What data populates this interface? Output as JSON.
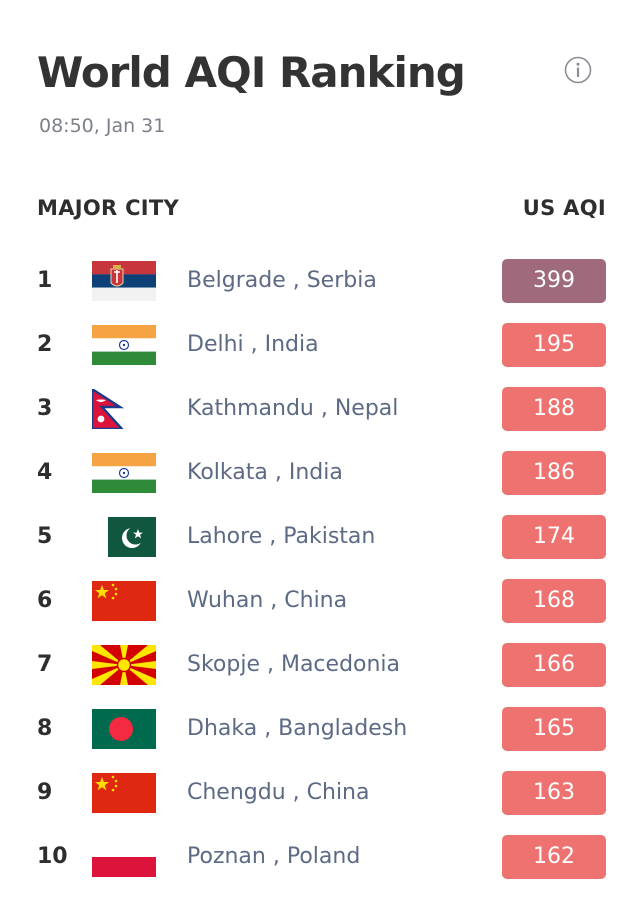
{
  "header": {
    "title": "World AQI Ranking",
    "timestamp": "08:50, Jan 31"
  },
  "columns": {
    "city": "MAJOR CITY",
    "aqi": "US AQI"
  },
  "colors": {
    "hazardous": "#9e6a7c",
    "unhealthy": "#ee7270"
  },
  "rankings": [
    {
      "rank": "1",
      "city": "Belgrade , Serbia",
      "aqi": "399",
      "flag": "serbia-flag-icon",
      "level": "hazardous"
    },
    {
      "rank": "2",
      "city": "Delhi , India",
      "aqi": "195",
      "flag": "india-flag-icon",
      "level": "unhealthy"
    },
    {
      "rank": "3",
      "city": "Kathmandu , Nepal",
      "aqi": "188",
      "flag": "nepal-flag-icon",
      "level": "unhealthy"
    },
    {
      "rank": "4",
      "city": "Kolkata , India",
      "aqi": "186",
      "flag": "india-flag-icon",
      "level": "unhealthy"
    },
    {
      "rank": "5",
      "city": "Lahore , Pakistan",
      "aqi": "174",
      "flag": "pakistan-flag-icon",
      "level": "unhealthy"
    },
    {
      "rank": "6",
      "city": "Wuhan , China",
      "aqi": "168",
      "flag": "china-flag-icon",
      "level": "unhealthy"
    },
    {
      "rank": "7",
      "city": "Skopje , Macedonia",
      "aqi": "166",
      "flag": "macedonia-flag-icon",
      "level": "unhealthy"
    },
    {
      "rank": "8",
      "city": "Dhaka , Bangladesh",
      "aqi": "165",
      "flag": "bangladesh-flag-icon",
      "level": "unhealthy"
    },
    {
      "rank": "9",
      "city": "Chengdu , China",
      "aqi": "163",
      "flag": "china-flag-icon",
      "level": "unhealthy"
    },
    {
      "rank": "10",
      "city": "Poznan , Poland",
      "aqi": "162",
      "flag": "poland-flag-icon",
      "level": "unhealthy"
    }
  ]
}
